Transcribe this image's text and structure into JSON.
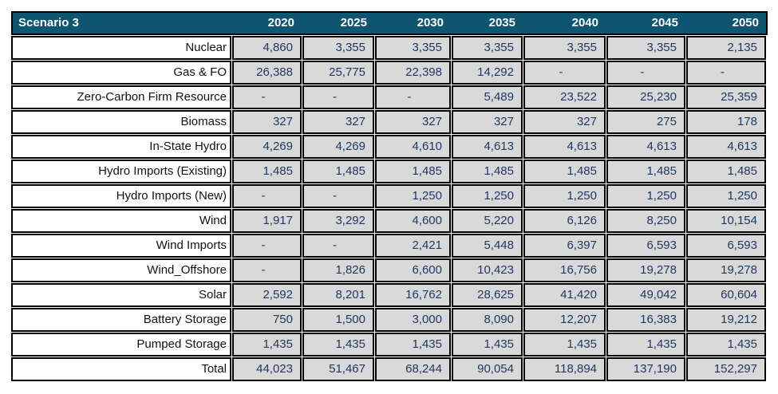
{
  "table": {
    "title": "Scenario 3",
    "years": [
      "2020",
      "2025",
      "2030",
      "2035",
      "2040",
      "2045",
      "2050"
    ],
    "rows": [
      {
        "label": "Nuclear",
        "values": [
          "4,860",
          "3,355",
          "3,355",
          "3,355",
          "3,355",
          "3,355",
          "2,135"
        ]
      },
      {
        "label": "Gas & FO",
        "values": [
          "26,388",
          "25,775",
          "22,398",
          "14,292",
          "-",
          "-",
          "-"
        ]
      },
      {
        "label": "Zero-Carbon Firm Resource",
        "values": [
          "-",
          "-",
          "-",
          "5,489",
          "23,522",
          "25,230",
          "25,359"
        ]
      },
      {
        "label": "Biomass",
        "values": [
          "327",
          "327",
          "327",
          "327",
          "327",
          "275",
          "178"
        ]
      },
      {
        "label": "In-State Hydro",
        "values": [
          "4,269",
          "4,269",
          "4,610",
          "4,613",
          "4,613",
          "4,613",
          "4,613"
        ]
      },
      {
        "label": "Hydro Imports (Existing)",
        "values": [
          "1,485",
          "1,485",
          "1,485",
          "1,485",
          "1,485",
          "1,485",
          "1,485"
        ]
      },
      {
        "label": "Hydro Imports (New)",
        "values": [
          "-",
          "-",
          "1,250",
          "1,250",
          "1,250",
          "1,250",
          "1,250"
        ]
      },
      {
        "label": "Wind",
        "values": [
          "1,917",
          "3,292",
          "4,600",
          "5,220",
          "6,126",
          "8,250",
          "10,154"
        ]
      },
      {
        "label": "Wind Imports",
        "values": [
          "-",
          "-",
          "2,421",
          "5,448",
          "6,397",
          "6,593",
          "6,593"
        ]
      },
      {
        "label": "Wind_Offshore",
        "values": [
          "-",
          "1,826",
          "6,600",
          "10,423",
          "16,756",
          "19,278",
          "19,278"
        ]
      },
      {
        "label": "Solar",
        "values": [
          "2,592",
          "8,201",
          "16,762",
          "28,625",
          "41,420",
          "49,042",
          "60,604"
        ]
      },
      {
        "label": "Battery Storage",
        "values": [
          "750",
          "1,500",
          "3,000",
          "8,090",
          "12,207",
          "16,383",
          "19,212"
        ]
      },
      {
        "label": "Pumped Storage",
        "values": [
          "1,435",
          "1,435",
          "1,435",
          "1,435",
          "1,435",
          "1,435",
          "1,435"
        ]
      },
      {
        "label": "Total",
        "values": [
          "44,023",
          "51,467",
          "68,244",
          "90,054",
          "118,894",
          "137,190",
          "152,297"
        ]
      }
    ],
    "colors": {
      "header_bg": "#0e5571",
      "header_text": "#ffffff",
      "data_cell_bg": "#d9d9d9",
      "value_text": "#1f3864",
      "label_cell_bg": "#ffffff",
      "label_text": "#121212",
      "border": "#000000"
    }
  },
  "chart_data": {
    "type": "table",
    "title": "Scenario 3",
    "categories": [
      2020,
      2025,
      2030,
      2035,
      2040,
      2045,
      2050
    ],
    "series": [
      {
        "name": "Nuclear",
        "values": [
          4860,
          3355,
          3355,
          3355,
          3355,
          3355,
          2135
        ]
      },
      {
        "name": "Gas & FO",
        "values": [
          26388,
          25775,
          22398,
          14292,
          null,
          null,
          null
        ]
      },
      {
        "name": "Zero-Carbon Firm Resource",
        "values": [
          null,
          null,
          null,
          5489,
          23522,
          25230,
          25359
        ]
      },
      {
        "name": "Biomass",
        "values": [
          327,
          327,
          327,
          327,
          327,
          275,
          178
        ]
      },
      {
        "name": "In-State Hydro",
        "values": [
          4269,
          4269,
          4610,
          4613,
          4613,
          4613,
          4613
        ]
      },
      {
        "name": "Hydro Imports (Existing)",
        "values": [
          1485,
          1485,
          1485,
          1485,
          1485,
          1485,
          1485
        ]
      },
      {
        "name": "Hydro Imports (New)",
        "values": [
          null,
          null,
          1250,
          1250,
          1250,
          1250,
          1250
        ]
      },
      {
        "name": "Wind",
        "values": [
          1917,
          3292,
          4600,
          5220,
          6126,
          8250,
          10154
        ]
      },
      {
        "name": "Wind Imports",
        "values": [
          null,
          null,
          2421,
          5448,
          6397,
          6593,
          6593
        ]
      },
      {
        "name": "Wind_Offshore",
        "values": [
          null,
          1826,
          6600,
          10423,
          16756,
          19278,
          19278
        ]
      },
      {
        "name": "Solar",
        "values": [
          2592,
          8201,
          16762,
          28625,
          41420,
          49042,
          60604
        ]
      },
      {
        "name": "Battery Storage",
        "values": [
          750,
          1500,
          3000,
          8090,
          12207,
          16383,
          19212
        ]
      },
      {
        "name": "Pumped Storage",
        "values": [
          1435,
          1435,
          1435,
          1435,
          1435,
          1435,
          1435
        ]
      },
      {
        "name": "Total",
        "values": [
          44023,
          51467,
          68244,
          90054,
          118894,
          137190,
          152297
        ]
      }
    ]
  }
}
